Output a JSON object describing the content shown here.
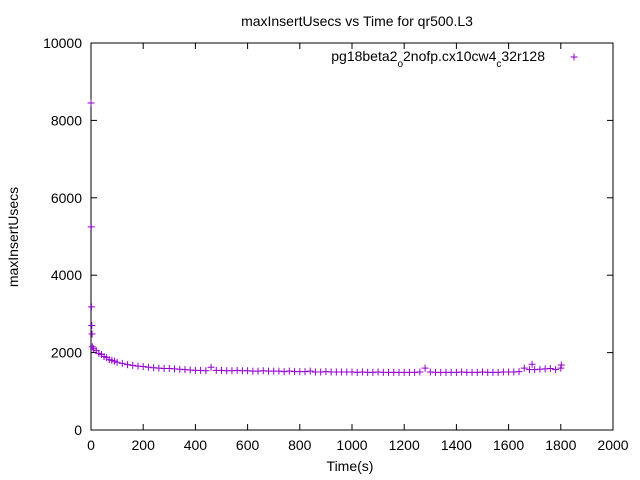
{
  "chart_data": {
    "type": "scatter",
    "title": "maxInsertUsecs vs Time for qr500.L3",
    "xlabel": "Time(s)",
    "ylabel": "maxInsertUsecs",
    "xlim": [
      0,
      2000
    ],
    "ylim": [
      0,
      10000
    ],
    "xticks": [
      "0",
      "200",
      "400",
      "600",
      "800",
      "1000",
      "1200",
      "1400",
      "1600",
      "1800",
      "2000"
    ],
    "yticks": [
      "0",
      "2000",
      "4000",
      "6000",
      "8000",
      "10000"
    ],
    "grid": false,
    "legend_position": "top-right",
    "marker": "+",
    "series": [
      {
        "name_parts": [
          {
            "text": "pg18beta2",
            "sub": false
          },
          {
            "text": "o",
            "sub": true
          },
          {
            "text": "2nofp.cx10cw4",
            "sub": false
          },
          {
            "text": "c",
            "sub": true
          },
          {
            "text": "32r128",
            "sub": false
          }
        ],
        "color": "#9400d3",
        "points": [
          [
            0,
            8450
          ],
          [
            1,
            5250
          ],
          [
            2,
            3180
          ],
          [
            3,
            2700
          ],
          [
            4,
            2480
          ],
          [
            5,
            2150
          ],
          [
            10,
            2100
          ],
          [
            20,
            2050
          ],
          [
            30,
            1980
          ],
          [
            40,
            1950
          ],
          [
            50,
            1900
          ],
          [
            60,
            1870
          ],
          [
            70,
            1820
          ],
          [
            80,
            1800
          ],
          [
            90,
            1780
          ],
          [
            100,
            1750
          ],
          [
            120,
            1720
          ],
          [
            140,
            1690
          ],
          [
            160,
            1670
          ],
          [
            180,
            1650
          ],
          [
            200,
            1640
          ],
          [
            220,
            1620
          ],
          [
            240,
            1610
          ],
          [
            260,
            1600
          ],
          [
            280,
            1590
          ],
          [
            300,
            1590
          ],
          [
            320,
            1580
          ],
          [
            340,
            1570
          ],
          [
            360,
            1560
          ],
          [
            380,
            1550
          ],
          [
            400,
            1540
          ],
          [
            420,
            1540
          ],
          [
            440,
            1530
          ],
          [
            460,
            1620
          ],
          [
            480,
            1540
          ],
          [
            500,
            1540
          ],
          [
            520,
            1530
          ],
          [
            540,
            1530
          ],
          [
            560,
            1540
          ],
          [
            580,
            1530
          ],
          [
            600,
            1530
          ],
          [
            620,
            1520
          ],
          [
            640,
            1520
          ],
          [
            660,
            1530
          ],
          [
            680,
            1520
          ],
          [
            700,
            1520
          ],
          [
            720,
            1520
          ],
          [
            740,
            1510
          ],
          [
            760,
            1520
          ],
          [
            780,
            1510
          ],
          [
            800,
            1510
          ],
          [
            820,
            1510
          ],
          [
            840,
            1520
          ],
          [
            860,
            1500
          ],
          [
            880,
            1500
          ],
          [
            900,
            1510
          ],
          [
            920,
            1500
          ],
          [
            940,
            1500
          ],
          [
            960,
            1500
          ],
          [
            980,
            1500
          ],
          [
            1000,
            1500
          ],
          [
            1020,
            1490
          ],
          [
            1040,
            1500
          ],
          [
            1060,
            1490
          ],
          [
            1080,
            1490
          ],
          [
            1100,
            1500
          ],
          [
            1120,
            1490
          ],
          [
            1140,
            1490
          ],
          [
            1160,
            1490
          ],
          [
            1180,
            1490
          ],
          [
            1200,
            1490
          ],
          [
            1220,
            1490
          ],
          [
            1240,
            1490
          ],
          [
            1260,
            1500
          ],
          [
            1280,
            1600
          ],
          [
            1300,
            1500
          ],
          [
            1320,
            1490
          ],
          [
            1340,
            1490
          ],
          [
            1360,
            1490
          ],
          [
            1380,
            1490
          ],
          [
            1400,
            1490
          ],
          [
            1420,
            1500
          ],
          [
            1440,
            1490
          ],
          [
            1460,
            1490
          ],
          [
            1480,
            1490
          ],
          [
            1500,
            1500
          ],
          [
            1520,
            1490
          ],
          [
            1540,
            1490
          ],
          [
            1560,
            1490
          ],
          [
            1580,
            1500
          ],
          [
            1600,
            1500
          ],
          [
            1620,
            1500
          ],
          [
            1640,
            1510
          ],
          [
            1660,
            1600
          ],
          [
            1680,
            1560
          ],
          [
            1690,
            1700
          ],
          [
            1700,
            1560
          ],
          [
            1720,
            1570
          ],
          [
            1740,
            1580
          ],
          [
            1760,
            1590
          ],
          [
            1780,
            1560
          ],
          [
            1800,
            1600
          ],
          [
            1802,
            1680
          ]
        ]
      }
    ]
  }
}
